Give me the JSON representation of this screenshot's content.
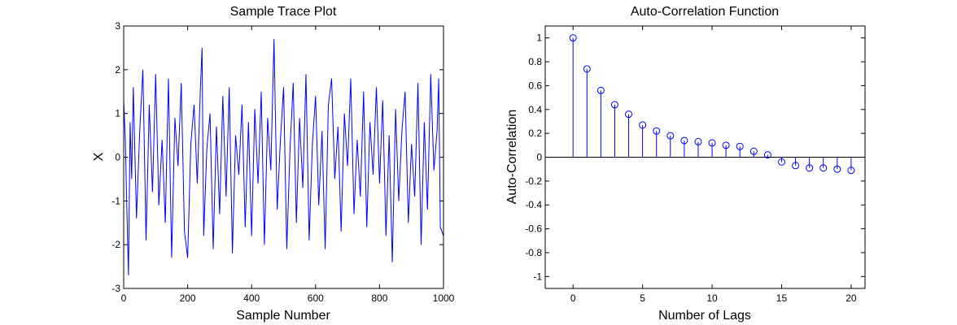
{
  "chart_data": [
    {
      "type": "line",
      "title": "Sample Trace Plot",
      "xlabel": "Sample Number",
      "ylabel": "X",
      "xlim": [
        0,
        1000
      ],
      "ylim": [
        -3,
        3
      ],
      "xticks": [
        "0",
        "200",
        "400",
        "600",
        "800",
        "1000"
      ],
      "yticks": [
        "-3",
        "-2",
        "-1",
        "0",
        "1",
        "2",
        "3"
      ],
      "grid": false,
      "line_color": "#0000ff",
      "series": [
        {
          "x": [
            0,
            5,
            10,
            15,
            20,
            25,
            30,
            40,
            50,
            60,
            70,
            80,
            90,
            100,
            110,
            120,
            130,
            140,
            150,
            160,
            170,
            180,
            190,
            200,
            210,
            220,
            230,
            240,
            245,
            250,
            260,
            270,
            280,
            290,
            300,
            310,
            320,
            330,
            340,
            350,
            360,
            370,
            380,
            390,
            400,
            410,
            420,
            430,
            440,
            450,
            460,
            470,
            480,
            490,
            500,
            510,
            520,
            530,
            540,
            550,
            560,
            570,
            580,
            590,
            600,
            610,
            620,
            630,
            640,
            650,
            660,
            670,
            680,
            690,
            700,
            710,
            720,
            730,
            740,
            750,
            760,
            770,
            780,
            790,
            800,
            810,
            820,
            830,
            840,
            850,
            860,
            870,
            880,
            890,
            900,
            910,
            920,
            930,
            940,
            950,
            960,
            970,
            980,
            985,
            990,
            1000
          ],
          "y": [
            1.3,
            0.4,
            -1.2,
            -2.7,
            0.8,
            -0.5,
            1.6,
            -1.4,
            0.6,
            2.0,
            -1.9,
            1.2,
            -0.8,
            1.9,
            -1.1,
            0.4,
            -1.5,
            1.8,
            -2.3,
            0.9,
            -0.2,
            1.7,
            -1.7,
            -2.3,
            0.3,
            1.2,
            -0.6,
            1.6,
            2.5,
            -1.8,
            0.2,
            1.0,
            -2.1,
            0.7,
            -1.3,
            1.4,
            -0.9,
            1.6,
            -2.2,
            0.5,
            -0.4,
            1.2,
            -1.6,
            0.8,
            -1.8,
            1.1,
            -0.6,
            1.5,
            -2.0,
            0.9,
            -0.3,
            2.7,
            -1.2,
            0.4,
            1.6,
            -2.1,
            0.2,
            1.7,
            -1.5,
            0.9,
            -0.7,
            1.9,
            -1.9,
            0.3,
            1.4,
            -1.1,
            0.6,
            -2.1,
            1.2,
            1.8,
            -0.5,
            0.7,
            -1.7,
            1.0,
            -0.2,
            1.8,
            -1.3,
            0.4,
            -0.9,
            1.5,
            -1.6,
            0.8,
            -0.4,
            1.6,
            -0.6,
            1.3,
            -1.8,
            0.5,
            -2.4,
            1.1,
            -1.0,
            0.6,
            1.5,
            -1.5,
            0.3,
            -0.9,
            1.7,
            -2.0,
            0.8,
            -1.2,
            1.9,
            -0.3,
            0.6,
            1.8,
            -1.6,
            -1.8
          ]
        }
      ]
    },
    {
      "type": "stem",
      "title": "Auto-Correlation Function",
      "xlabel": "Number of Lags",
      "ylabel": "Auto-Correlation",
      "xlim": [
        -2,
        21
      ],
      "ylim": [
        -1.1,
        1.1
      ],
      "xticks": [
        "0",
        "5",
        "10",
        "15",
        "20"
      ],
      "yticks": [
        "-1",
        "-0.8",
        "-0.6",
        "-0.4",
        "-0.2",
        "0",
        "0.2",
        "0.4",
        "0.6",
        "0.8",
        "1"
      ],
      "grid": false,
      "marker_color": "#0000ff",
      "x": [
        0,
        1,
        2,
        3,
        4,
        5,
        6,
        7,
        8,
        9,
        10,
        11,
        12,
        13,
        14,
        15,
        16,
        17,
        18,
        19,
        20
      ],
      "values": [
        1.0,
        0.74,
        0.56,
        0.44,
        0.36,
        0.27,
        0.22,
        0.18,
        0.14,
        0.13,
        0.12,
        0.1,
        0.09,
        0.05,
        0.02,
        -0.04,
        -0.07,
        -0.09,
        -0.09,
        -0.1,
        -0.11
      ]
    }
  ]
}
